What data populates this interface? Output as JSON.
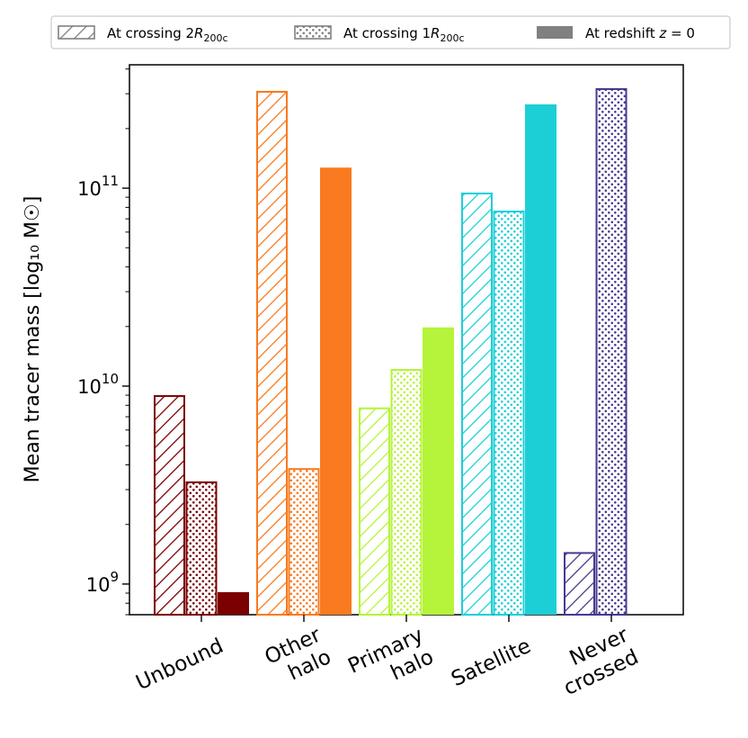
{
  "chart_data": {
    "type": "bar",
    "scale": "log",
    "ylabel": "Mean tracer mass [log₁₀ M☉]",
    "ylim": [
      700000000,
      420000000000
    ],
    "ytick_values": [
      1000000000,
      10000000000,
      100000000000
    ],
    "ytick_labels": [
      {
        "base": "10",
        "exp": "9"
      },
      {
        "base": "10",
        "exp": "10"
      },
      {
        "base": "10",
        "exp": "11"
      }
    ],
    "categories": [
      {
        "lines": [
          "Unbound"
        ],
        "color": "#7b0000"
      },
      {
        "lines": [
          "Other",
          "halo"
        ],
        "color": "#f97a1f"
      },
      {
        "lines": [
          "Primary",
          "halo"
        ],
        "color": "#b5f43a"
      },
      {
        "lines": [
          "Satellite"
        ],
        "color": "#1ccfd6"
      },
      {
        "lines": [
          "Never",
          "crossed"
        ],
        "color": "#463a8f"
      }
    ],
    "series": [
      {
        "name": "At crossing 2R200c",
        "style": "hatch",
        "values": [
          9000000000,
          310000000000,
          7800000000,
          95000000000,
          1450000000
        ]
      },
      {
        "name": "At crossing 1R200c",
        "style": "dots",
        "values": [
          3300000000,
          3850000000,
          12200000000,
          77000000000,
          320000000000
        ]
      },
      {
        "name": "At redshift z = 0",
        "style": "solid",
        "values": [
          910000000,
          127000000000,
          19800000000,
          265000000000,
          null
        ]
      }
    ],
    "legend": {
      "placement": "top",
      "items": [
        {
          "text": "At crossing 2",
          "sym": "R",
          "sub": "200c",
          "style": "hatch"
        },
        {
          "text": "At crossing 1",
          "sym": "R",
          "sub": "200c",
          "style": "dots"
        },
        {
          "text": "At redshift ",
          "sym": "z",
          "suffix": " = 0",
          "style": "solid"
        }
      ]
    },
    "colors": {
      "legend_swatch": "#808080",
      "axis": "#000000"
    }
  }
}
